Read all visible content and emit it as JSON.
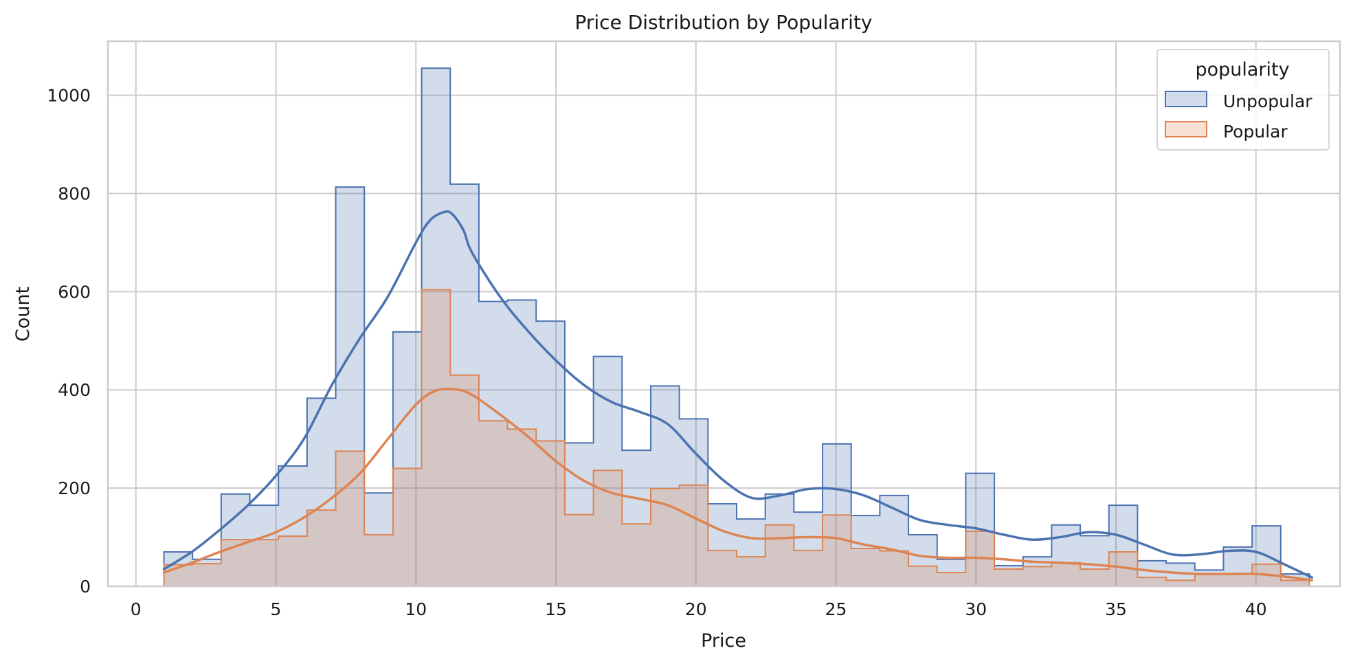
{
  "chart_data": {
    "type": "histogram",
    "title": "Price Distribution by Popularity",
    "xlabel": "Price",
    "ylabel": "Count",
    "xlim": [
      -1,
      43
    ],
    "ylim": [
      0,
      1110
    ],
    "xticks": [
      0,
      5,
      10,
      15,
      20,
      25,
      30,
      35,
      40
    ],
    "yticks": [
      0,
      200,
      400,
      600,
      800,
      1000
    ],
    "grid": true,
    "legend": {
      "title": "popularity",
      "placement": "top-right"
    },
    "bin_start": 1.0,
    "bin_width": 1.0227,
    "series": [
      {
        "name": "Unpopular",
        "color": "#4c72b0",
        "values": [
          70,
          55,
          188,
          165,
          245,
          383,
          813,
          190,
          518,
          1055,
          819,
          580,
          583,
          540,
          292,
          468,
          277,
          408,
          341,
          168,
          137,
          188,
          151,
          290,
          144,
          185,
          105,
          55,
          230,
          42,
          60,
          125,
          103,
          165,
          52,
          47,
          33,
          80,
          123,
          25
        ],
        "kde_x": [
          1,
          2,
          3,
          4,
          5,
          6,
          7,
          8,
          9,
          10,
          10.5,
          11,
          11.3,
          11.7,
          12,
          13,
          14,
          15,
          16,
          17,
          18,
          19,
          20,
          21,
          22,
          23,
          24,
          25,
          26,
          27,
          28,
          29,
          30,
          31,
          32,
          33,
          34,
          35,
          36,
          37,
          38,
          39,
          40,
          41,
          42
        ],
        "kde_y": [
          35,
          70,
          115,
          165,
          225,
          300,
          410,
          505,
          590,
          700,
          745,
          762,
          758,
          725,
          680,
          590,
          520,
          460,
          410,
          375,
          355,
          330,
          270,
          215,
          180,
          185,
          198,
          198,
          185,
          160,
          135,
          125,
          118,
          105,
          95,
          100,
          110,
          105,
          85,
          65,
          65,
          72,
          70,
          45,
          18
        ]
      },
      {
        "name": "Popular",
        "color": "#dd8452",
        "values": [
          44,
          46,
          95,
          95,
          102,
          155,
          275,
          105,
          240,
          604,
          430,
          337,
          320,
          296,
          146,
          236,
          127,
          199,
          206,
          73,
          60,
          125,
          73,
          145,
          77,
          72,
          41,
          28,
          112,
          35,
          40,
          48,
          35,
          70,
          18,
          12,
          25,
          25,
          45,
          12
        ],
        "kde_x": [
          1,
          2,
          3,
          4,
          5,
          6,
          7,
          8,
          9,
          10,
          10.7,
          11.4,
          12,
          13,
          14,
          15,
          16,
          17,
          18,
          19,
          20,
          21,
          22,
          23,
          24,
          25,
          26,
          27,
          28,
          29,
          30,
          31,
          32,
          33,
          34,
          35,
          36,
          37,
          38,
          39,
          40,
          41,
          42
        ],
        "kde_y": [
          28,
          48,
          70,
          90,
          110,
          140,
          180,
          230,
          300,
          370,
          398,
          401,
          390,
          350,
          305,
          255,
          215,
          190,
          178,
          165,
          138,
          112,
          98,
          98,
          100,
          98,
          85,
          75,
          62,
          58,
          58,
          55,
          50,
          48,
          45,
          40,
          33,
          28,
          25,
          25,
          25,
          20,
          12
        ]
      }
    ]
  }
}
